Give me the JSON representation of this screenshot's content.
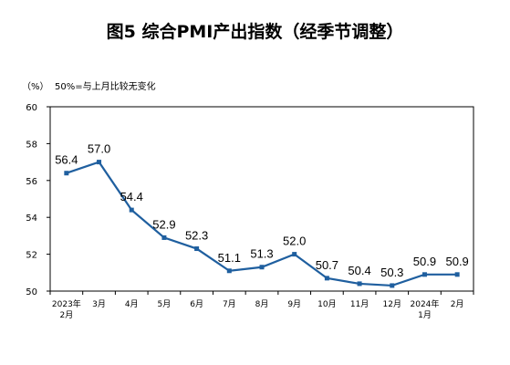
{
  "chart_data": {
    "type": "line",
    "title": "图5 综合PMI产出指数（经季节调整）",
    "ylabel": "（%）",
    "annotation": "50%=与上月比较无变化",
    "ylim": [
      50,
      60
    ],
    "yticks": [
      "50",
      "52",
      "54",
      "56",
      "58",
      "60"
    ],
    "grid": false,
    "categories": [
      [
        "2023年",
        "2月"
      ],
      [
        "3月"
      ],
      [
        "4月"
      ],
      [
        "5月"
      ],
      [
        "6月"
      ],
      [
        "7月"
      ],
      [
        "8月"
      ],
      [
        "9月"
      ],
      [
        "10月"
      ],
      [
        "11月"
      ],
      [
        "12月"
      ],
      [
        "2024年",
        "1月"
      ],
      [
        "2月"
      ]
    ],
    "series": [
      {
        "values": [
          56.4,
          57.0,
          54.4,
          52.9,
          52.3,
          51.1,
          51.3,
          52.0,
          50.7,
          50.4,
          50.3,
          50.9,
          50.9
        ],
        "labels": [
          "56.4",
          "57.0",
          "54.4",
          "52.9",
          "52.3",
          "51.1",
          "51.3",
          "52.0",
          "50.7",
          "50.4",
          "50.3",
          "50.9",
          "50.9"
        ],
        "color": "#1f5f9f"
      }
    ]
  }
}
